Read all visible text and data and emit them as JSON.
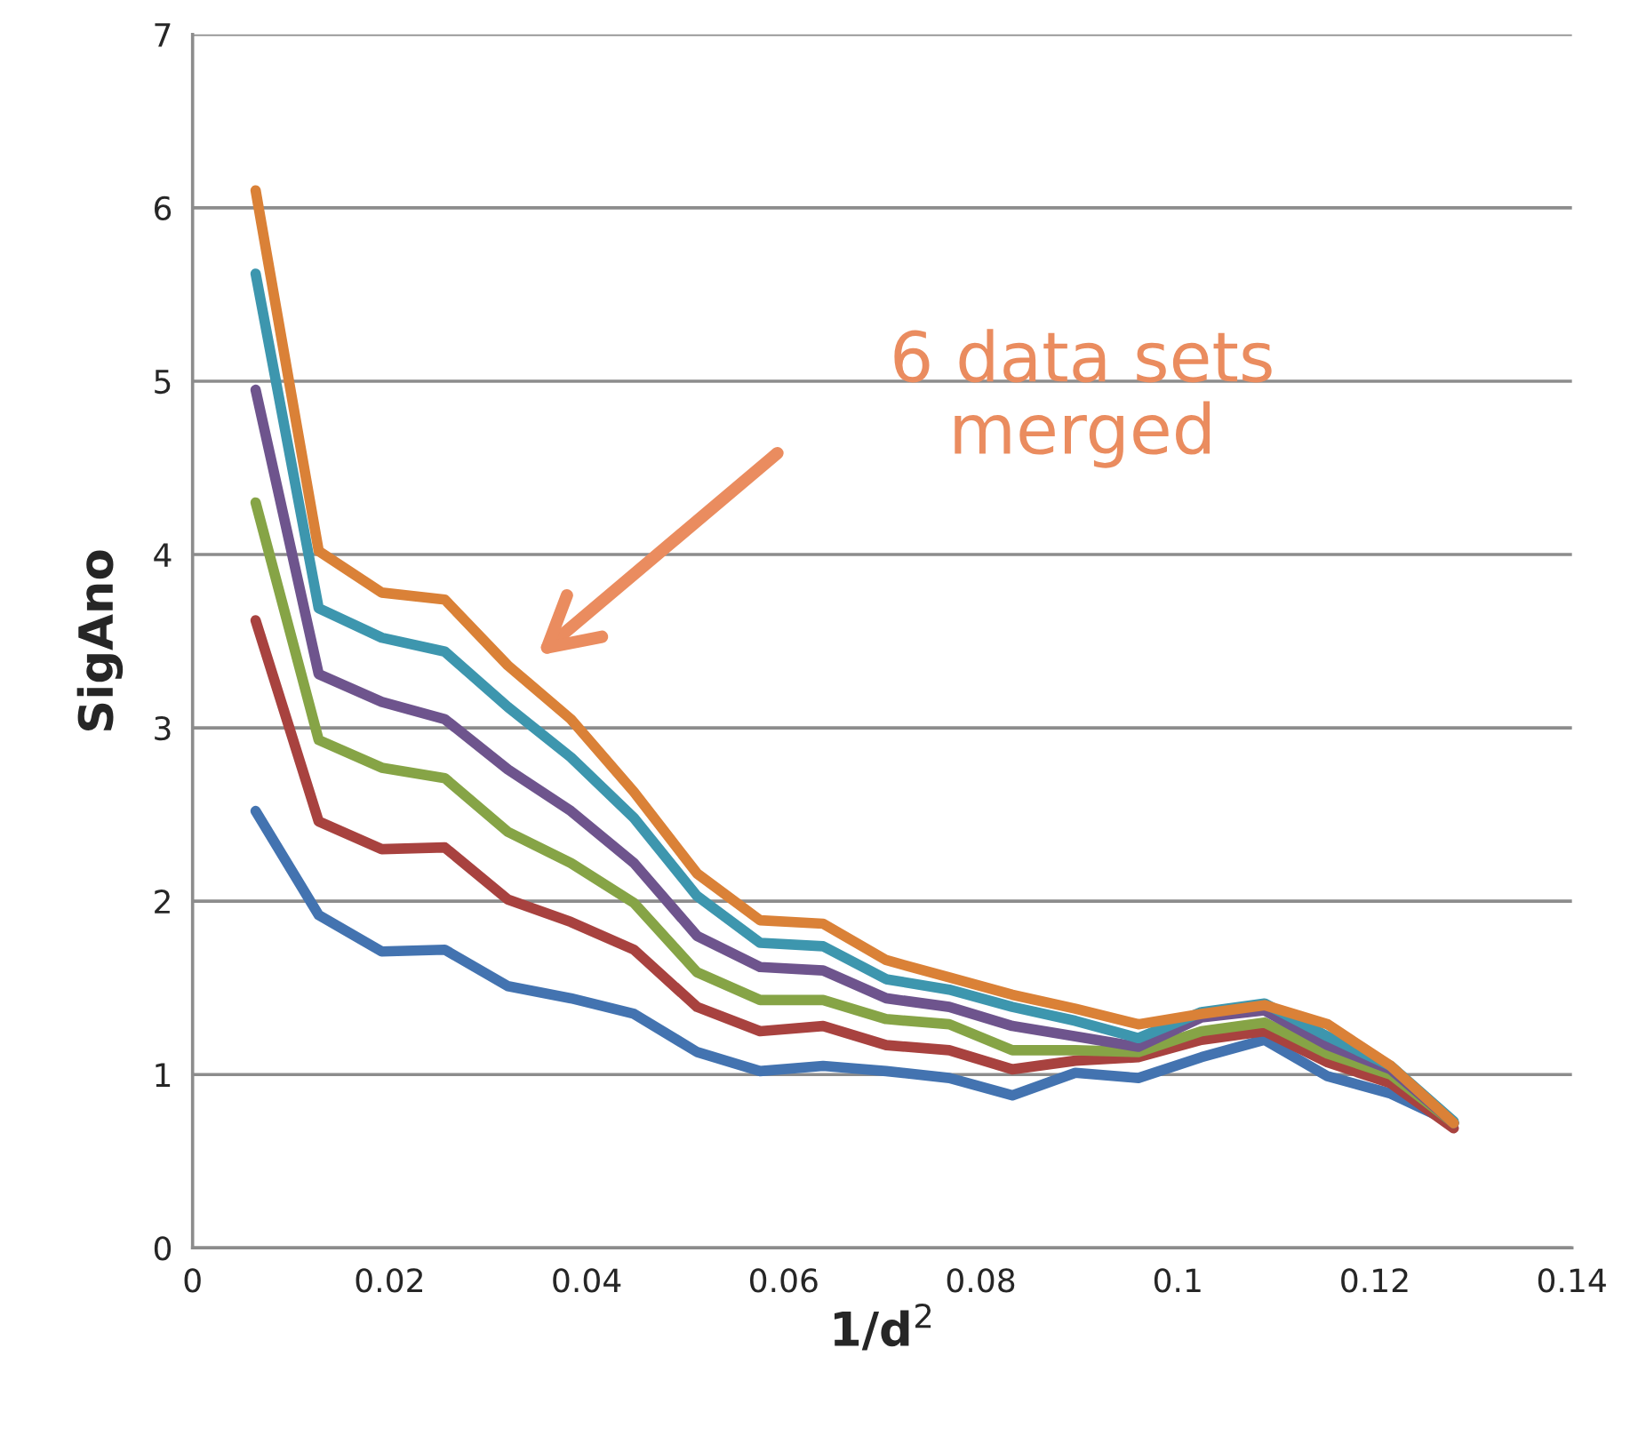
{
  "chart_data": {
    "type": "line",
    "xlabel": "1/d$^{2}$",
    "ylabel": "SigAno",
    "x": [
      0.0064,
      0.0128,
      0.0192,
      0.0256,
      0.032,
      0.0384,
      0.0448,
      0.0512,
      0.0576,
      0.064,
      0.0704,
      0.0768,
      0.0832,
      0.0896,
      0.096,
      0.1024,
      0.1088,
      0.1152,
      0.1216,
      0.128
    ],
    "series": [
      {
        "color": "#4373b0",
        "values": [
          2.52,
          1.92,
          1.71,
          1.72,
          1.51,
          1.44,
          1.35,
          1.13,
          1.02,
          1.05,
          1.02,
          0.98,
          0.88,
          1.01,
          0.98,
          1.1,
          1.2,
          0.99,
          0.89,
          0.72
        ]
      },
      {
        "color": "#a8423f",
        "values": [
          3.62,
          2.46,
          2.3,
          2.31,
          2.01,
          1.88,
          1.72,
          1.39,
          1.25,
          1.28,
          1.17,
          1.14,
          1.03,
          1.08,
          1.1,
          1.2,
          1.25,
          1.07,
          0.95,
          0.69
        ]
      },
      {
        "color": "#86a446",
        "values": [
          4.3,
          2.93,
          2.77,
          2.71,
          2.4,
          2.22,
          1.99,
          1.59,
          1.43,
          1.43,
          1.32,
          1.29,
          1.14,
          1.14,
          1.13,
          1.25,
          1.3,
          1.12,
          1.0,
          0.72
        ]
      },
      {
        "color": "#6e548d",
        "values": [
          4.95,
          3.31,
          3.15,
          3.05,
          2.76,
          2.52,
          2.22,
          1.8,
          1.62,
          1.6,
          1.44,
          1.39,
          1.28,
          1.22,
          1.16,
          1.33,
          1.37,
          1.17,
          1.03,
          0.72
        ]
      },
      {
        "color": "#3d96ae",
        "values": [
          5.62,
          3.69,
          3.52,
          3.44,
          3.12,
          2.83,
          2.48,
          2.03,
          1.76,
          1.74,
          1.55,
          1.49,
          1.39,
          1.31,
          1.21,
          1.36,
          1.41,
          1.22,
          1.05,
          0.73
        ]
      },
      {
        "color": "#da8137",
        "values": [
          6.1,
          4.02,
          3.78,
          3.74,
          3.36,
          3.05,
          2.63,
          2.16,
          1.89,
          1.87,
          1.66,
          1.56,
          1.46,
          1.38,
          1.29,
          1.35,
          1.4,
          1.29,
          1.05,
          0.72
        ]
      }
    ],
    "annotations": [
      "6 data sets\nmerged"
    ],
    "xlim": [
      0,
      0.14
    ],
    "xticks": [
      0,
      0.02,
      0.04,
      0.06,
      0.08,
      0.1,
      0.12,
      0.14
    ],
    "ylim": [
      0,
      7
    ],
    "yticks": [
      0,
      1,
      2,
      3,
      4,
      5,
      6,
      7
    ],
    "grid": "y",
    "marker": "none",
    "line_style": "solid"
  }
}
